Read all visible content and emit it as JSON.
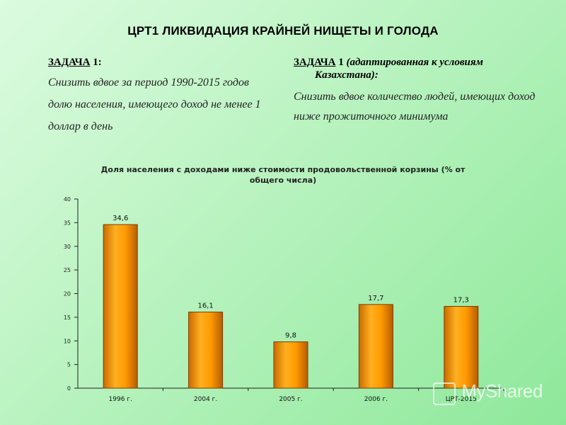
{
  "slide": {
    "title": "ЦРТ1 ЛИКВИДАЦИЯ  КРАЙНЕЙ НИЩЕТЫ И ГОЛОДА"
  },
  "task_left": {
    "heading": "ЗАДАЧА",
    "number": " 1:",
    "text": "Снизить вдвое за период 1990-2015 годов долю населения, имеющего доход не менее 1 доллар в день"
  },
  "task_right": {
    "heading": "ЗАДАЧА",
    "number": " 1",
    "note_line1": "(адаптированная к условиям",
    "note_line2": "Казахстана):",
    "text": "Снизить вдвое количество людей, имеющих доход ниже прожиточного минимума"
  },
  "chart_data": {
    "type": "bar",
    "title": "Доля населения с доходами ниже стоимости продовольственной корзины (% от общего числа)",
    "categories": [
      "1996 г.",
      "2004 г.",
      "2005 г.",
      "2006 г.",
      "ЦРТ-2015"
    ],
    "values": [
      34.6,
      16.1,
      9.8,
      17.7,
      17.3
    ],
    "value_labels": [
      "34,6",
      "16,1",
      "9,8",
      "17,7",
      "17,3"
    ],
    "ylim": [
      0,
      40
    ],
    "yticks": [
      0,
      5,
      10,
      15,
      20,
      25,
      30,
      35,
      40
    ],
    "grid": false,
    "bar_color": "#ff9900"
  },
  "watermark": "MyShared"
}
